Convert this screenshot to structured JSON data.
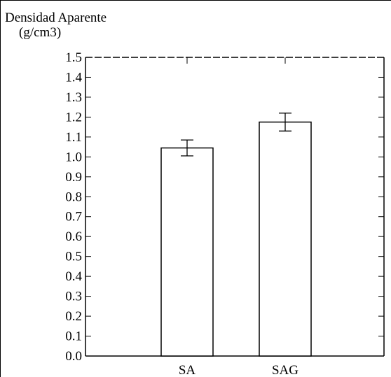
{
  "chart_data": {
    "type": "bar",
    "ylabel_line1": "Densidad Aparente",
    "ylabel_line2": "(g/cm3)",
    "xlabel": "",
    "title": "",
    "categories": [
      "SA",
      "SAG"
    ],
    "values": [
      1.045,
      1.175
    ],
    "errors": [
      0.04,
      0.045
    ],
    "ylim": [
      0.0,
      1.5
    ],
    "yticks": [
      "0.0",
      "0.1",
      "0.2",
      "0.3",
      "0.4",
      "0.5",
      "0.6",
      "0.7",
      "0.8",
      "0.9",
      "1.0",
      "1.1",
      "1.2",
      "1.3",
      "1.4",
      "1.5"
    ],
    "grid": false,
    "bar_fill": "#ffffff",
    "line_color": "#000000",
    "top_line_style": "dashed"
  }
}
